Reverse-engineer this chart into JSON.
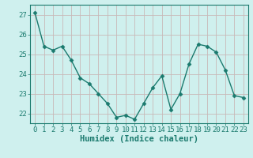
{
  "x": [
    0,
    1,
    2,
    3,
    4,
    5,
    6,
    7,
    8,
    9,
    10,
    11,
    12,
    13,
    14,
    15,
    16,
    17,
    18,
    19,
    20,
    21,
    22,
    23
  ],
  "y": [
    27.1,
    25.4,
    25.2,
    25.4,
    24.7,
    23.8,
    23.5,
    23.0,
    22.5,
    21.8,
    21.9,
    21.7,
    22.5,
    23.3,
    23.9,
    22.2,
    23.0,
    24.5,
    25.5,
    25.4,
    25.1,
    24.2,
    22.9,
    22.8
  ],
  "ylim": [
    21.5,
    27.5
  ],
  "xlim": [
    -0.5,
    23.5
  ],
  "yticks": [
    22,
    23,
    24,
    25,
    26,
    27
  ],
  "xticks": [
    0,
    1,
    2,
    3,
    4,
    5,
    6,
    7,
    8,
    9,
    10,
    11,
    12,
    13,
    14,
    15,
    16,
    17,
    18,
    19,
    20,
    21,
    22,
    23
  ],
  "xlabel": "Humidex (Indice chaleur)",
  "line_color": "#1a7a6e",
  "marker": "D",
  "marker_size": 2.5,
  "bg_color": "#cff0ee",
  "grid_color": "#c8b8b8",
  "axis_color": "#1a7a6e",
  "tick_color": "#1a7a6e",
  "label_color": "#1a7a6e",
  "font_size": 6.5
}
